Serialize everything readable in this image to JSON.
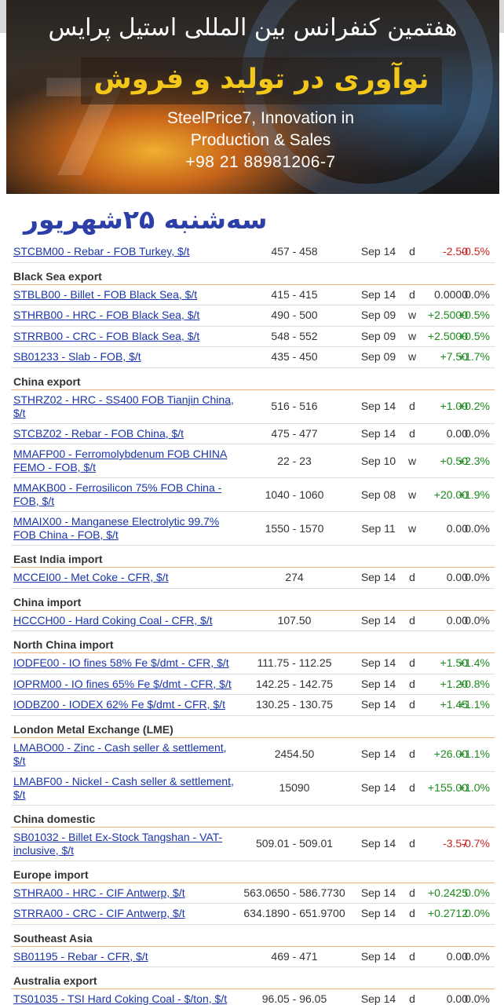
{
  "banner": {
    "conference_fa": "هفتمین کنفرانس بین المللی استیل پرایس",
    "title_fa": "نوآوری در تولید و فروش",
    "line1_en": "SteelPrice7, Innovation in",
    "line2_en": "Production & Sales",
    "phone": "+98 21 88981206-7"
  },
  "date_fa": "سه‌شنبه ۲۵شهریور",
  "sections": [
    {
      "title": "",
      "rows": [
        {
          "name": "STCBM00 - Rebar - FOB Turkey, $/t",
          "range": "457 - 458",
          "date": "Sep 14",
          "freq": "d",
          "change": "-2.50",
          "pct": "-0.5%",
          "dir": "neg",
          "tall": false
        }
      ]
    },
    {
      "title": "Black Sea export",
      "rows": [
        {
          "name": "STBLB00 - Billet - FOB Black Sea, $/t",
          "range": "415 - 415",
          "date": "Sep 14",
          "freq": "d",
          "change": "0.0000",
          "pct": "0.0%",
          "dir": "zero",
          "tall": false
        },
        {
          "name": "STHRB00 - HRC - FOB Black Sea, $/t",
          "range": "490 - 500",
          "date": "Sep 09",
          "freq": "w",
          "change": "+2.5000",
          "pct": "+0.5%",
          "dir": "pos",
          "tall": false
        },
        {
          "name": "STRRB00 - CRC - FOB Black Sea, $/t",
          "range": "548 - 552",
          "date": "Sep 09",
          "freq": "w",
          "change": "+2.5000",
          "pct": "+0.5%",
          "dir": "pos",
          "tall": false
        },
        {
          "name": "SB01233 - Slab - FOB, $/t",
          "range": "435 - 450",
          "date": "Sep 09",
          "freq": "w",
          "change": "+7.50",
          "pct": "+1.7%",
          "dir": "pos",
          "tall": false
        }
      ]
    },
    {
      "title": "China export",
      "rows": [
        {
          "name": "STHRZ02 - HRC - SS400 FOB Tianjin China, $/t",
          "range": "516 - 516",
          "date": "Sep 14",
          "freq": "d",
          "change": "+1.00",
          "pct": "+0.2%",
          "dir": "pos",
          "tall": true
        },
        {
          "name": "STCBZ02 - Rebar - FOB China, $/t",
          "range": "475 - 477",
          "date": "Sep 14",
          "freq": "d",
          "change": "0.00",
          "pct": "0.0%",
          "dir": "zero",
          "tall": false
        },
        {
          "name": "MMAFP00 - Ferromolybdenum FOB CHINA FEMO - FOB, $/t",
          "range": "22 - 23",
          "date": "Sep 10",
          "freq": "w",
          "change": "+0.50",
          "pct": "+2.3%",
          "dir": "pos",
          "tall": true
        },
        {
          "name": "MMAKB00 - Ferrosilicon 75% FOB China - FOB, $/t",
          "range": "1040 - 1060",
          "date": "Sep 08",
          "freq": "w",
          "change": "+20.00",
          "pct": "+1.9%",
          "dir": "pos",
          "tall": true
        },
        {
          "name": "MMAIX00 - Manganese Electrolytic 99.7% FOB China - FOB, $/t",
          "range": "1550 - 1570",
          "date": "Sep 11",
          "freq": "w",
          "change": "0.00",
          "pct": "0.0%",
          "dir": "zero",
          "tall": true
        }
      ]
    },
    {
      "title": "East India import",
      "rows": [
        {
          "name": "MCCEI00 - Met Coke - CFR, $/t",
          "range": "274",
          "date": "Sep 14",
          "freq": "d",
          "change": "0.00",
          "pct": "0.0%",
          "dir": "zero",
          "tall": false
        }
      ]
    },
    {
      "title": "China import",
      "rows": [
        {
          "name": "HCCCH00 - Hard Coking Coal - CFR, $/t",
          "range": "107.50",
          "date": "Sep 14",
          "freq": "d",
          "change": "0.00",
          "pct": "0.0%",
          "dir": "zero",
          "tall": false
        }
      ]
    },
    {
      "title": "North China import",
      "rows": [
        {
          "name": "IODFE00 - IO fines 58% Fe $/dmt - CFR, $/t",
          "range": "111.75 - 112.25",
          "date": "Sep 14",
          "freq": "d",
          "change": "+1.50",
          "pct": "+1.4%",
          "dir": "pos",
          "tall": false
        },
        {
          "name": "IOPRM00 - IO fines 65% Fe $/dmt - CFR, $/t",
          "range": "142.25 - 142.75",
          "date": "Sep 14",
          "freq": "d",
          "change": "+1.20",
          "pct": "+0.8%",
          "dir": "pos",
          "tall": false
        },
        {
          "name": "IODBZ00 - IODEX 62% Fe $/dmt - CFR, $/t",
          "range": "130.25 - 130.75",
          "date": "Sep 14",
          "freq": "d",
          "change": "+1.45",
          "pct": "+1.1%",
          "dir": "pos",
          "tall": false
        }
      ]
    },
    {
      "title": "London Metal Exchange (LME)",
      "rows": [
        {
          "name": "LMABO00 - Zinc - Cash seller & settlement, $/t",
          "range": "2454.50",
          "date": "Sep 14",
          "freq": "d",
          "change": "+26.00",
          "pct": "+1.1%",
          "dir": "pos",
          "tall": true
        },
        {
          "name": "LMABF00 - Nickel - Cash seller & settlement, $/t",
          "range": "15090",
          "date": "Sep 14",
          "freq": "d",
          "change": "+155.00",
          "pct": "+1.0%",
          "dir": "pos",
          "tall": true
        }
      ]
    },
    {
      "title": "China domestic",
      "rows": [
        {
          "name": "SB01032 - Billet Ex-Stock Tangshan - VAT-inclusive, $/t",
          "range": "509.01 - 509.01",
          "date": "Sep 14",
          "freq": "d",
          "change": "-3.57",
          "pct": "-0.7%",
          "dir": "neg",
          "tall": true
        }
      ]
    },
    {
      "title": "Europe import",
      "rows": [
        {
          "name": "STHRA00 - HRC - CIF Antwerp, $/t",
          "range": "563.0650 - 586.7730",
          "date": "Sep 14",
          "freq": "d",
          "change": "+0.2425",
          "pct": "0.0%",
          "dir": "pos",
          "tall": false
        },
        {
          "name": "STRRA00 - CRC - CIF Antwerp, $/t",
          "range": "634.1890 - 651.9700",
          "date": "Sep 14",
          "freq": "d",
          "change": "+0.2712",
          "pct": "0.0%",
          "dir": "pos",
          "tall": false
        }
      ]
    },
    {
      "title": "Southeast Asia",
      "rows": [
        {
          "name": "SB01195 - Rebar - CFR, $/t",
          "range": "469 - 471",
          "date": "Sep 14",
          "freq": "d",
          "change": "0.00",
          "pct": "0.0%",
          "dir": "zero",
          "tall": false
        }
      ]
    },
    {
      "title": "Australia export",
      "rows": [
        {
          "name": "TS01035 - TSI Hard Coking Coal - $/ton, $/t",
          "range": "96.05 - 96.05",
          "date": "Sep 14",
          "freq": "d",
          "change": "0.00",
          "pct": "0.0%",
          "dir": "zero",
          "tall": false
        }
      ]
    }
  ]
}
